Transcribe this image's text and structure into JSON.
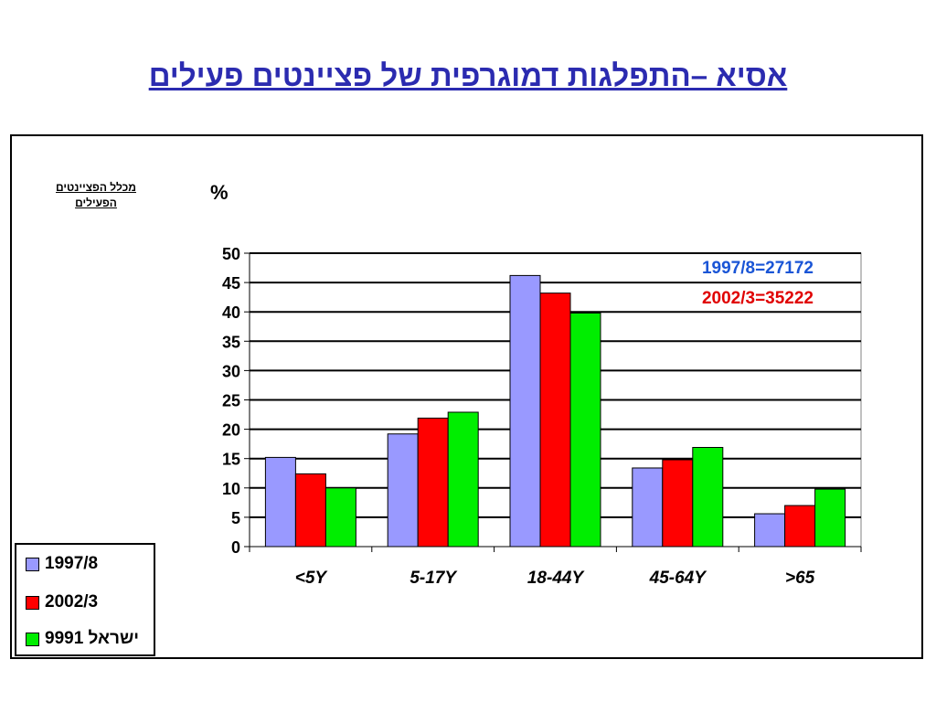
{
  "title": "אסיא –התפלגות דמוגרפית של פציינטים פעילים",
  "note_line1": "מכלל הפציינטים",
  "note_line2": "הפעילים",
  "chart_data": {
    "type": "bar",
    "ylabel": "%",
    "ylim": [
      0,
      50
    ],
    "yticks": [
      0,
      5,
      10,
      15,
      20,
      25,
      30,
      35,
      40,
      45,
      50
    ],
    "categories": [
      "<5Y",
      "5-17Y",
      "18-44Y",
      "45-64Y",
      ">65"
    ],
    "series": [
      {
        "name": "1997/8",
        "color": "#9999ff",
        "values": [
          15.2,
          19.2,
          46.2,
          13.4,
          5.6
        ]
      },
      {
        "name": "2002/3",
        "color": "#ff0000",
        "values": [
          12.4,
          21.9,
          43.2,
          14.8,
          7.0
        ]
      },
      {
        "name": "ישראל 9991",
        "color": "#00ee00",
        "values": [
          10.0,
          22.9,
          39.8,
          16.9,
          9.8
        ]
      }
    ],
    "annotations": [
      {
        "text": "1997/8=27172",
        "color": "#1a55d6"
      },
      {
        "text": "2002/3=35222",
        "color": "#e00000"
      }
    ],
    "grid": true,
    "legend_position": "bottom-left"
  }
}
